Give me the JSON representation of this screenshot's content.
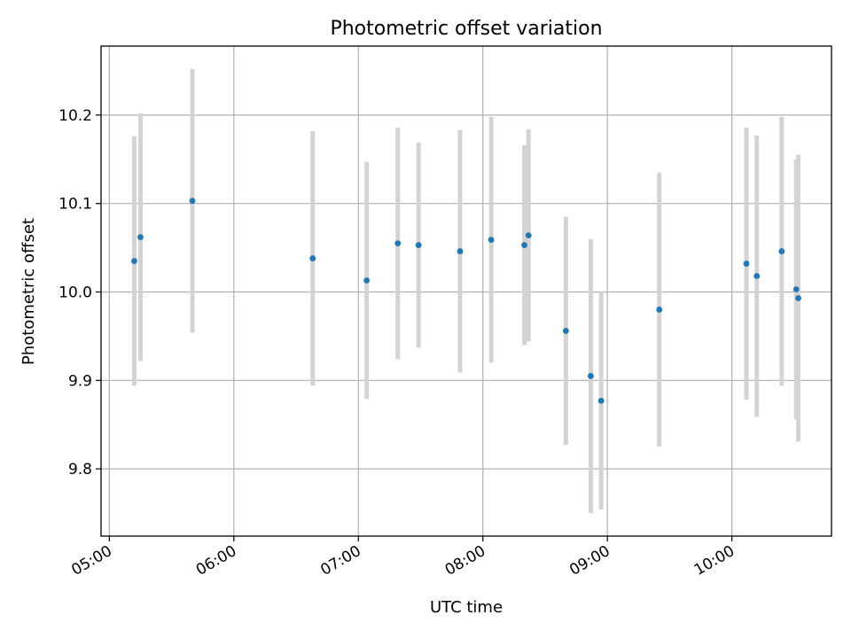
{
  "chart_data": {
    "type": "scatter",
    "title": "Photometric offset variation",
    "xlabel": "UTC time",
    "ylabel": "Photometric offset",
    "xlim": [
      "04:56",
      "10:48"
    ],
    "ylim": [
      9.724,
      10.278
    ],
    "grid": true,
    "x_ticks": [
      "05:00",
      "06:00",
      "07:00",
      "08:00",
      "09:00",
      "10:00"
    ],
    "y_ticks": [
      9.8,
      9.9,
      10.0,
      10.1,
      10.2
    ],
    "y_tick_labels": [
      "9.8",
      "9.9",
      "10.0",
      "10.1",
      "10.2"
    ],
    "colors": {
      "point": "#1f77b4",
      "errorbar": "#d3d3d3",
      "grid": "#b0b0b0"
    },
    "points": [
      {
        "x": "05:12",
        "y": 10.035,
        "err": 0.141
      },
      {
        "x": "05:15",
        "y": 10.062,
        "err": 0.14
      },
      {
        "x": "05:40",
        "y": 10.103,
        "err": 0.149
      },
      {
        "x": "06:38",
        "y": 10.038,
        "err": 0.144
      },
      {
        "x": "07:04",
        "y": 10.013,
        "err": 0.134
      },
      {
        "x": "07:19",
        "y": 10.055,
        "err": 0.131
      },
      {
        "x": "07:29",
        "y": 10.053,
        "err": 0.116
      },
      {
        "x": "07:49",
        "y": 10.046,
        "err": 0.137
      },
      {
        "x": "08:04",
        "y": 10.059,
        "err": 0.139
      },
      {
        "x": "08:20",
        "y": 10.053,
        "err": 0.113
      },
      {
        "x": "08:22",
        "y": 10.064,
        "err": 0.12
      },
      {
        "x": "08:40",
        "y": 9.956,
        "err": 0.129
      },
      {
        "x": "08:52",
        "y": 9.905,
        "err": 0.155
      },
      {
        "x": "08:57",
        "y": 9.877,
        "err": 0.123
      },
      {
        "x": "09:25",
        "y": 9.98,
        "err": 0.155
      },
      {
        "x": "10:07",
        "y": 10.032,
        "err": 0.154
      },
      {
        "x": "10:12",
        "y": 10.018,
        "err": 0.159
      },
      {
        "x": "10:24",
        "y": 10.046,
        "err": 0.152
      },
      {
        "x": "10:31",
        "y": 10.003,
        "err": 0.147
      },
      {
        "x": "10:32",
        "y": 9.993,
        "err": 0.162
      }
    ]
  }
}
